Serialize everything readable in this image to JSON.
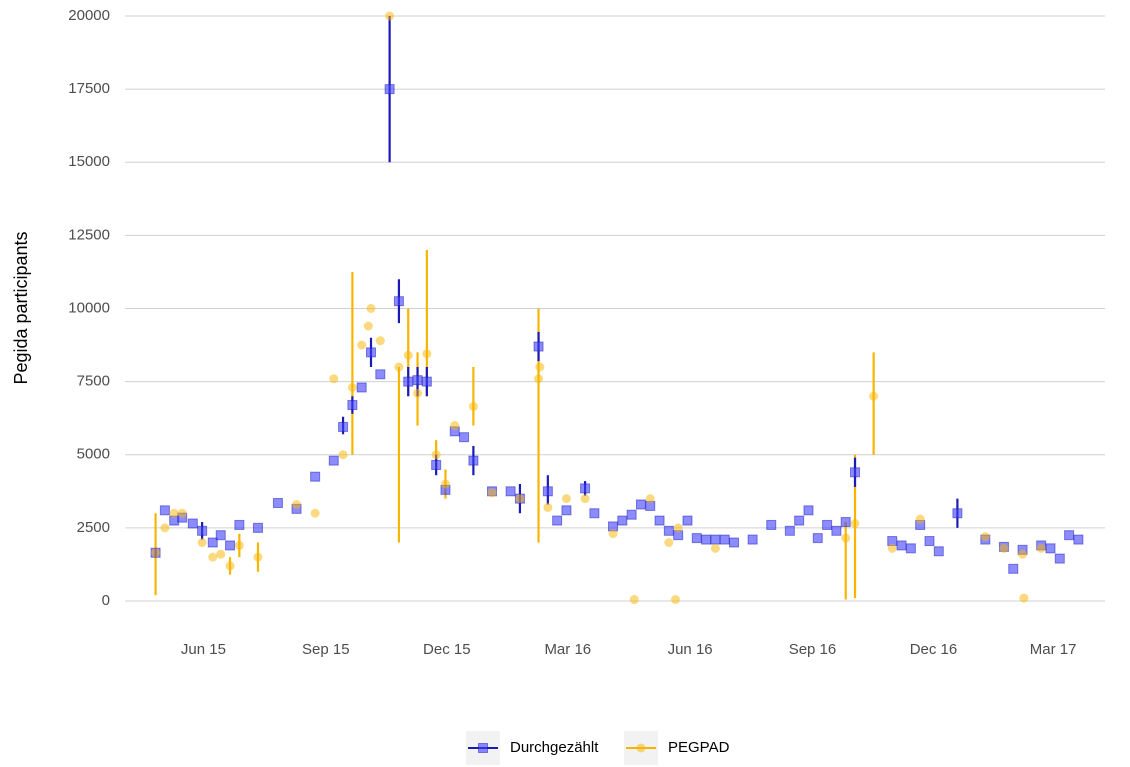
{
  "chart_data": {
    "type": "errorpoint",
    "y_label": "Pegida participants",
    "xlim": [
      "2015-04-03",
      "2017-04-09"
    ],
    "xticks": [
      {
        "value": "2015-06-01",
        "label": "Jun 15"
      },
      {
        "value": "2015-09-01",
        "label": "Sep 15"
      },
      {
        "value": "2015-12-01",
        "label": "Dec 15"
      },
      {
        "value": "2016-03-01",
        "label": "Mar 16"
      },
      {
        "value": "2016-06-01",
        "label": "Jun 16"
      },
      {
        "value": "2016-09-01",
        "label": "Sep 16"
      },
      {
        "value": "2016-12-01",
        "label": "Dec 16"
      },
      {
        "value": "2017-03-01",
        "label": "Mar 17"
      }
    ],
    "ylim": [
      -900,
      20500
    ],
    "yticks": [
      0,
      2500,
      5000,
      7500,
      10000,
      12500,
      15000,
      17500,
      20000
    ],
    "grid": true,
    "legend": "bottom",
    "series": [
      {
        "name": "Durchgezählt",
        "color": "#1a1ab8",
        "marker": "square",
        "x": [
          "2015-04-26",
          "2015-05-03",
          "2015-05-10",
          "2015-05-16",
          "2015-05-24",
          "2015-05-31",
          "2015-06-08",
          "2015-06-14",
          "2015-06-21",
          "2015-06-28",
          "2015-07-12",
          "2015-07-27",
          "2015-08-10",
          "2015-08-24",
          "2015-09-07",
          "2015-09-14",
          "2015-09-21",
          "2015-09-28",
          "2015-10-05",
          "2015-10-12",
          "2015-10-19",
          "2015-10-26",
          "2015-11-02",
          "2015-11-09",
          "2015-11-16",
          "2015-11-23",
          "2015-11-30",
          "2015-12-07",
          "2015-12-14",
          "2015-12-21",
          "2016-01-04",
          "2016-01-18",
          "2016-01-25",
          "2016-02-08",
          "2016-02-15",
          "2016-02-22",
          "2016-02-29",
          "2016-03-14",
          "2016-03-21",
          "2016-04-04",
          "2016-04-11",
          "2016-04-18",
          "2016-04-25",
          "2016-05-02",
          "2016-05-09",
          "2016-05-16",
          "2016-05-23",
          "2016-05-30",
          "2016-06-06",
          "2016-06-13",
          "2016-06-20",
          "2016-06-27",
          "2016-07-04",
          "2016-07-18",
          "2016-08-01",
          "2016-08-15",
          "2016-08-22",
          "2016-08-29",
          "2016-09-05",
          "2016-09-12",
          "2016-09-19",
          "2016-09-26",
          "2016-10-03",
          "2016-10-31",
          "2016-11-07",
          "2016-11-14",
          "2016-11-21",
          "2016-11-28",
          "2016-12-05",
          "2016-12-19",
          "2017-01-09",
          "2017-01-23",
          "2017-01-30",
          "2017-02-06",
          "2017-02-20",
          "2017-02-27",
          "2017-03-06",
          "2017-03-13",
          "2017-03-20"
        ],
        "values": [
          1650,
          3100,
          2750,
          2850,
          2650,
          2400,
          2000,
          2250,
          1900,
          2600,
          2500,
          3350,
          3150,
          4250,
          4800,
          5950,
          6700,
          7300,
          8500,
          7750,
          17500,
          10250,
          7500,
          7550,
          7500,
          4650,
          3800,
          5800,
          5600,
          4800,
          3750,
          3750,
          3500,
          8700,
          3750,
          2750,
          3100,
          3850,
          3000,
          2550,
          2750,
          2950,
          3300,
          3250,
          2750,
          2400,
          2250,
          2750,
          2150,
          2100,
          2100,
          2100,
          2000,
          2100,
          2600,
          2400,
          2750,
          3100,
          2150,
          2600,
          2400,
          2700,
          4400,
          2050,
          1900,
          1800,
          2600,
          2050,
          1700,
          3000,
          2100,
          1850,
          1100,
          1750,
          1900,
          1800,
          1450,
          2250,
          2100
        ],
        "lower": [
          1500,
          null,
          null,
          null,
          null,
          2100,
          null,
          null,
          null,
          null,
          null,
          null,
          null,
          null,
          null,
          5700,
          6400,
          null,
          8000,
          null,
          15000,
          9500,
          7000,
          7000,
          7000,
          4300,
          null,
          null,
          null,
          4300,
          null,
          null,
          3000,
          8200,
          3300,
          null,
          null,
          3600,
          null,
          null,
          null,
          null,
          null,
          null,
          null,
          null,
          null,
          null,
          null,
          null,
          null,
          null,
          null,
          null,
          null,
          null,
          null,
          null,
          null,
          null,
          null,
          null,
          3900,
          null,
          null,
          null,
          null,
          null,
          null,
          2500,
          null,
          null,
          null,
          null,
          null,
          null,
          null,
          null,
          null
        ],
        "upper": [
          1800,
          null,
          null,
          null,
          null,
          2700,
          null,
          null,
          null,
          null,
          null,
          null,
          null,
          null,
          null,
          6300,
          7000,
          null,
          9000,
          null,
          20000,
          11000,
          8000,
          8000,
          8000,
          5000,
          null,
          null,
          null,
          5300,
          null,
          null,
          4000,
          9200,
          4300,
          null,
          null,
          4100,
          null,
          null,
          null,
          null,
          null,
          null,
          null,
          null,
          null,
          null,
          null,
          null,
          null,
          null,
          null,
          null,
          null,
          null,
          null,
          null,
          null,
          null,
          null,
          null,
          4900,
          null,
          null,
          null,
          null,
          null,
          null,
          3500,
          null,
          null,
          null,
          null,
          null,
          null,
          null,
          null,
          null
        ]
      },
      {
        "name": "PEGPAD",
        "color": "#f7b500",
        "marker": "circle",
        "x": [
          "2015-04-26",
          "2015-05-03",
          "2015-05-10",
          "2015-05-16",
          "2015-05-31",
          "2015-06-08",
          "2015-06-14",
          "2015-06-21",
          "2015-06-28",
          "2015-07-12",
          "2015-08-10",
          "2015-08-24",
          "2015-09-07",
          "2015-09-14",
          "2015-09-21",
          "2015-09-28",
          "2015-10-03",
          "2015-10-05",
          "2015-10-12",
          "2015-10-19",
          "2015-10-26",
          "2015-11-02",
          "2015-11-09",
          "2015-11-16",
          "2015-11-23",
          "2015-11-30",
          "2015-12-07",
          "2015-12-21",
          "2016-01-04",
          "2016-01-25",
          "2016-02-08",
          "2016-02-09",
          "2016-02-15",
          "2016-02-29",
          "2016-03-14",
          "2016-04-04",
          "2016-04-20",
          "2016-05-02",
          "2016-05-16",
          "2016-05-21",
          "2016-05-23",
          "2016-06-20",
          "2016-09-26",
          "2016-10-03",
          "2016-10-17",
          "2016-10-31",
          "2016-11-21",
          "2017-01-09",
          "2017-01-23",
          "2017-02-06",
          "2017-02-07",
          "2017-02-20"
        ],
        "values": [
          1650,
          2500,
          3000,
          3000,
          2000,
          1500,
          1600,
          1200,
          1900,
          1500,
          3300,
          3000,
          7600,
          5000,
          7300,
          8750,
          9400,
          10000,
          8900,
          20000,
          8000,
          8400,
          7100,
          8450,
          5000,
          4000,
          6000,
          6650,
          3700,
          3500,
          7600,
          8000,
          3200,
          3500,
          3500,
          2300,
          50,
          3500,
          2000,
          50,
          2500,
          1800,
          2150,
          2650,
          7000,
          1800,
          2800,
          2200,
          1800,
          1600,
          100,
          1800
        ],
        "lower": [
          200,
          null,
          null,
          null,
          null,
          null,
          null,
          900,
          1500,
          1000,
          null,
          null,
          null,
          null,
          5000,
          null,
          null,
          null,
          null,
          null,
          2000,
          7000,
          6000,
          7000,
          4500,
          3500,
          null,
          6000,
          null,
          null,
          2000,
          null,
          null,
          null,
          null,
          null,
          null,
          null,
          null,
          null,
          null,
          null,
          50,
          100,
          5000,
          null,
          null,
          null,
          null,
          null,
          null,
          null
        ],
        "upper": [
          3000,
          null,
          null,
          null,
          null,
          null,
          null,
          1500,
          2300,
          2000,
          null,
          null,
          null,
          null,
          11250,
          null,
          null,
          null,
          null,
          null,
          8000,
          10000,
          8500,
          12000,
          5500,
          4500,
          null,
          8000,
          null,
          null,
          10000,
          null,
          null,
          null,
          null,
          null,
          null,
          null,
          null,
          null,
          null,
          null,
          2700,
          5000,
          8500,
          null,
          null,
          null,
          null,
          null,
          null,
          null
        ]
      }
    ]
  }
}
